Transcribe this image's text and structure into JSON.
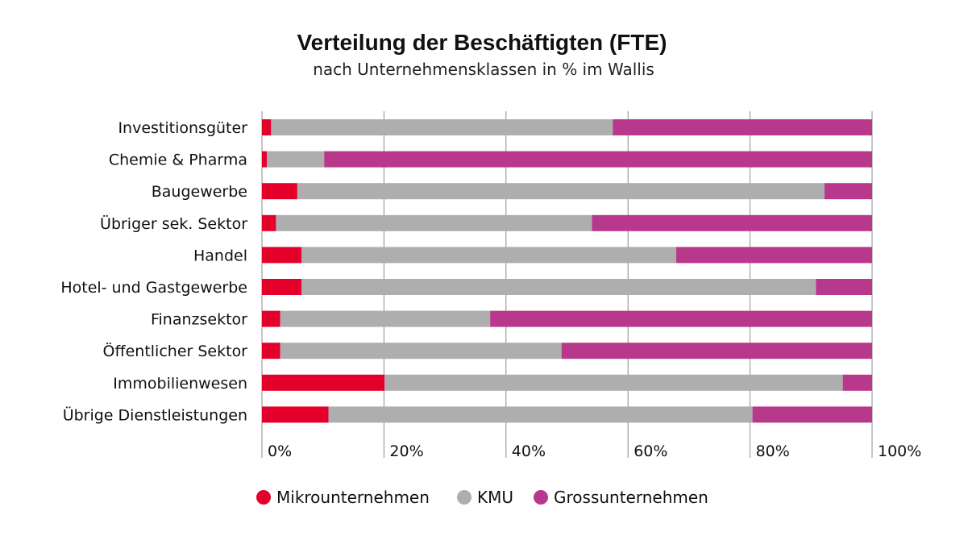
{
  "chart_data": {
    "type": "bar",
    "orientation": "horizontal",
    "stacked": true,
    "title": "Verteilung der Beschäftigten (FTE)",
    "subtitle": "nach Unternehmensklassen in % im Wallis",
    "categories": [
      "Investitionsgüter",
      "Chemie & Pharma",
      "Baugewerbe",
      "Übriger sek. Sektor",
      "Handel",
      "Hotel- und Gastgewerbe",
      "Finanzsektor",
      "Öffentlicher Sektor",
      "Immobilienwesen",
      "Übrige Dienstleistungen"
    ],
    "series": [
      {
        "name": "Mikrounternehmen",
        "color": "#e4002b",
        "values": [
          1.5,
          0.8,
          5.8,
          2.3,
          6.5,
          6.5,
          3.0,
          3.0,
          20.1,
          10.9
        ]
      },
      {
        "name": "KMU",
        "color": "#aeaeae",
        "values": [
          56.0,
          9.4,
          86.4,
          51.8,
          61.4,
          84.3,
          34.4,
          46.1,
          75.1,
          69.5
        ]
      },
      {
        "name": "Grossunternehmen",
        "color": "#b8398b",
        "values": [
          42.5,
          89.8,
          7.8,
          45.9,
          32.1,
          9.2,
          62.6,
          50.9,
          4.8,
          19.6
        ]
      }
    ],
    "xlim": [
      0,
      100
    ],
    "x_ticks": [
      "0%",
      "20%",
      "40%",
      "60%",
      "80%",
      "100%"
    ],
    "x_tick_values": [
      0,
      20,
      40,
      60,
      80,
      100
    ],
    "grid": true,
    "legend_position": "bottom"
  }
}
